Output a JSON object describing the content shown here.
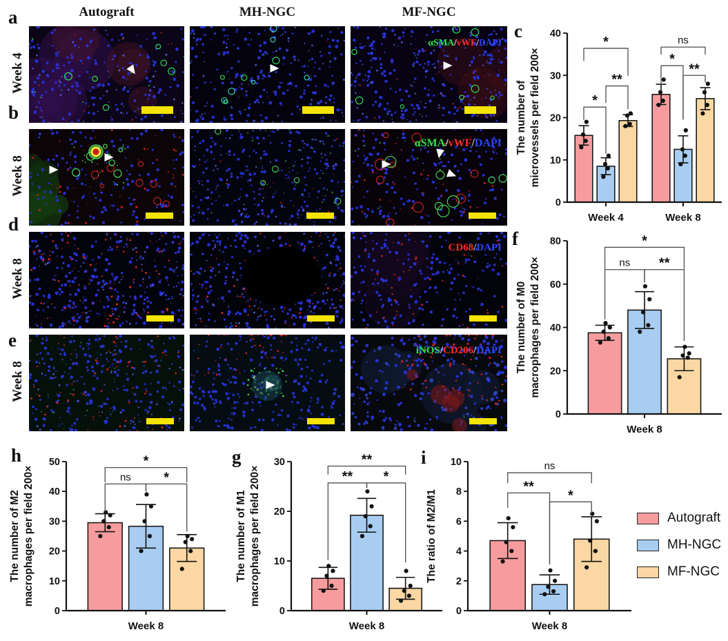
{
  "series": [
    {
      "label": "Autograft",
      "color": "#F79C9E"
    },
    {
      "label": "MH-NGC",
      "color": "#A8CDF1"
    },
    {
      "label": "MF-NGC",
      "color": "#FAD7A3"
    }
  ],
  "legend": {
    "items": [
      {
        "label": "Autograft",
        "color": "#F79C9E"
      },
      {
        "label": "MH-NGC",
        "color": "#A8CDF1"
      },
      {
        "label": "MF-NGC",
        "color": "#FAD7A3"
      }
    ]
  },
  "micro": {
    "col_headers": [
      "Autograft",
      "MH-NGC",
      "MF-NGC"
    ],
    "scale_bar_color": "#F5E400",
    "rows": [
      {
        "letter": "a",
        "side_label": "Week 4",
        "marker": [
          {
            "t": "αSMA",
            "c": "#2EE34A"
          },
          {
            "t": "/",
            "c": "#F0F0F0"
          },
          {
            "t": "vWF",
            "c": "#FF2A2A"
          },
          {
            "t": "/",
            "c": "#C8C8C8"
          },
          {
            "t": "DAPI",
            "c": "#2A46FF"
          }
        ]
      },
      {
        "letter": "b",
        "side_label": "Week 8",
        "marker": [
          {
            "t": "αSMA",
            "c": "#2EE34A"
          },
          {
            "t": "/",
            "c": "#F0F0F0"
          },
          {
            "t": "vWF",
            "c": "#FF2A2A"
          },
          {
            "t": "/",
            "c": "#C8C8C8"
          },
          {
            "t": "DAPI",
            "c": "#2A46FF"
          }
        ]
      },
      {
        "letter": "d",
        "side_label": "Week 8",
        "marker": [
          {
            "t": "CD68",
            "c": "#FF2A2A"
          },
          {
            "t": "/",
            "c": "#C8C8C8"
          },
          {
            "t": "DAPI",
            "c": "#2A46FF"
          }
        ]
      },
      {
        "letter": "e",
        "side_label": "Week 8",
        "marker": [
          {
            "t": "iNOS",
            "c": "#2EE34A"
          },
          {
            "t": "/",
            "c": "#F0F0F0"
          },
          {
            "t": "CD206",
            "c": "#FF2A2A"
          },
          {
            "t": "/",
            "c": "#C8C8C8"
          },
          {
            "t": "DAPI",
            "c": "#2A46FF"
          }
        ]
      }
    ]
  },
  "chart_data": [
    {
      "id": "c",
      "panel": "c",
      "type": "bar",
      "ylabel_lines": [
        "The number of",
        "microvessels per field 200×"
      ],
      "ylim": [
        0,
        40
      ],
      "yticks": [
        0,
        10,
        20,
        30,
        40
      ],
      "groups": [
        {
          "label": "Week 4",
          "bars": [
            {
              "series": "Autograft",
              "mean": 15.8,
              "sd": 2.3,
              "points": [
                13,
                14.5,
                16,
                19
              ]
            },
            {
              "series": "MH-NGC",
              "mean": 8.5,
              "sd": 2,
              "points": [
                6,
                8,
                9,
                11
              ]
            },
            {
              "series": "MF-NGC",
              "mean": 19.3,
              "sd": 1.4,
              "points": [
                18,
                18.5,
                20.5,
                21
              ]
            }
          ]
        },
        {
          "label": "Week 8",
          "bars": [
            {
              "series": "Autograft",
              "mean": 25.5,
              "sd": 2.4,
              "points": [
                23,
                24,
                26,
                29
              ]
            },
            {
              "series": "MH-NGC",
              "mean": 12.5,
              "sd": 3.2,
              "points": [
                9,
                11,
                12.5,
                17
              ]
            },
            {
              "series": "MF-NGC",
              "mean": 24.5,
              "sd": 2.6,
              "points": [
                21,
                23,
                26,
                28
              ]
            }
          ]
        }
      ],
      "brackets": [
        {
          "g": 0,
          "a": 0,
          "b": 1,
          "y": 22.5,
          "label": "*",
          "legs": [
            3,
            11
          ]
        },
        {
          "g": 0,
          "a": 1,
          "b": 2,
          "y": 27.5,
          "label": "**",
          "legs": [
            4,
            5.5
          ]
        },
        {
          "g": 0,
          "a": 0,
          "b": 2,
          "y": 36.4,
          "label": "*",
          "legs": [
            3,
            6.5
          ]
        },
        {
          "g": 1,
          "a": 0,
          "b": 1,
          "y": 32.3,
          "label": "*",
          "legs": [
            4.5,
            12.5
          ]
        },
        {
          "g": 1,
          "a": 1,
          "b": 2,
          "y": 30,
          "label": "**",
          "legs": [
            10.5,
            1.7
          ]
        },
        {
          "g": 1,
          "a": 0,
          "b": 2,
          "y": 36.7,
          "label": "ns",
          "legs": [
            1.8,
            1.8
          ]
        }
      ]
    },
    {
      "id": "f",
      "panel": "f",
      "type": "bar",
      "ylabel_lines": [
        "The number of M0",
        "macrophages per field 200×"
      ],
      "ylim": [
        0,
        80
      ],
      "yticks": [
        0,
        20,
        40,
        60,
        80
      ],
      "groups": [
        {
          "label": "Week 8",
          "bars": [
            {
              "series": "Autograft",
              "mean": 37.5,
              "sd": 3.5,
              "points": [
                33,
                35,
                38,
                40,
                42
              ]
            },
            {
              "series": "MH-NGC",
              "mean": 48,
              "sd": 8.5,
              "points": [
                38,
                41,
                47,
                53,
                59
              ]
            },
            {
              "series": "MF-NGC",
              "mean": 25.5,
              "sd": 5.5,
              "points": [
                17,
                26,
                27,
                28,
                31
              ]
            }
          ]
        }
      ],
      "brackets": [
        {
          "g": 0,
          "a": 0,
          "b": 1,
          "y": 66.7,
          "label": "ns",
          "legs": [
            23,
            6
          ]
        },
        {
          "g": 0,
          "a": 1,
          "b": 2,
          "y": 66.7,
          "label": "**",
          "legs": [
            6,
            33
          ]
        },
        {
          "g": 0,
          "a": 0,
          "b": 2,
          "y": 77,
          "label": "*",
          "legs": [
            10,
            10
          ]
        }
      ]
    },
    {
      "id": "h",
      "panel": "h",
      "type": "bar",
      "ylabel_lines": [
        "The number of M2",
        "macrophages per field 200×"
      ],
      "ylim": [
        0,
        50
      ],
      "yticks": [
        0,
        10,
        20,
        30,
        40,
        50
      ],
      "groups": [
        {
          "label": "Week 8",
          "bars": [
            {
              "series": "Autograft",
              "mean": 29.5,
              "sd": 3,
              "points": [
                25,
                28,
                30,
                32,
                33
              ]
            },
            {
              "series": "MH-NGC",
              "mean": 28.3,
              "sd": 7.3,
              "points": [
                20,
                25,
                30,
                35,
                39
              ]
            },
            {
              "series": "MF-NGC",
              "mean": 21,
              "sd": 4.5,
              "points": [
                14,
                20,
                23,
                24,
                25
              ]
            }
          ]
        }
      ],
      "brackets": [
        {
          "g": 0,
          "a": 0,
          "b": 1,
          "y": 42.5,
          "label": "ns",
          "legs": [
            9.5,
            2.5
          ]
        },
        {
          "g": 0,
          "a": 1,
          "b": 2,
          "y": 42.5,
          "label": "*",
          "legs": [
            2.5,
            16
          ]
        },
        {
          "g": 0,
          "a": 0,
          "b": 2,
          "y": 48,
          "label": "*",
          "legs": [
            5,
            5
          ]
        }
      ]
    },
    {
      "id": "g",
      "panel": "g",
      "type": "bar",
      "ylabel_lines": [
        "The number of M1",
        "macrophages per field 200×"
      ],
      "ylim": [
        0,
        30
      ],
      "yticks": [
        0,
        10,
        20,
        30
      ],
      "groups": [
        {
          "label": "Week 8",
          "bars": [
            {
              "series": "Autograft",
              "mean": 6.5,
              "sd": 2.2,
              "points": [
                4,
                5,
                7,
                8,
                9
              ]
            },
            {
              "series": "MH-NGC",
              "mean": 19.2,
              "sd": 3.4,
              "points": [
                15,
                17,
                19,
                21,
                24
              ]
            },
            {
              "series": "MF-NGC",
              "mean": 4.5,
              "sd": 2.2,
              "points": [
                2,
                3,
                4,
                5,
                8
              ]
            }
          ]
        }
      ],
      "brackets": [
        {
          "g": 0,
          "a": 0,
          "b": 1,
          "y": 25.7,
          "label": "**",
          "legs": [
            15.5,
            1
          ]
        },
        {
          "g": 0,
          "a": 1,
          "b": 2,
          "y": 25.7,
          "label": "*",
          "legs": [
            1,
            16
          ]
        },
        {
          "g": 0,
          "a": 0,
          "b": 2,
          "y": 29.1,
          "label": "**",
          "legs": [
            1.7,
            1.7
          ]
        }
      ]
    },
    {
      "id": "i",
      "panel": "i",
      "type": "bar",
      "ylabel_lines": [
        "The ratio of M2/M1"
      ],
      "ylim": [
        0,
        10
      ],
      "yticks": [
        0,
        2,
        4,
        6,
        8,
        10
      ],
      "groups": [
        {
          "label": "Week 8",
          "bars": [
            {
              "series": "Autograft",
              "mean": 4.7,
              "sd": 1.2,
              "points": [
                3.3,
                4,
                4.6,
                5.6,
                6.2
              ]
            },
            {
              "series": "MH-NGC",
              "mean": 1.75,
              "sd": 0.65,
              "points": [
                1.1,
                1.3,
                1.6,
                2,
                2.7
              ]
            },
            {
              "series": "MF-NGC",
              "mean": 4.8,
              "sd": 1.5,
              "points": [
                2.9,
                4,
                4.7,
                6,
                6.5
              ]
            }
          ]
        }
      ],
      "brackets": [
        {
          "g": 0,
          "a": 0,
          "b": 1,
          "y": 7.9,
          "label": "**",
          "legs": [
            1,
            4.8
          ]
        },
        {
          "g": 0,
          "a": 1,
          "b": 2,
          "y": 7.3,
          "label": "*",
          "legs": [
            4.2,
            0.8
          ]
        },
        {
          "g": 0,
          "a": 0,
          "b": 2,
          "y": 9.25,
          "label": "ns",
          "legs": [
            0.7,
            0.7
          ]
        }
      ]
    }
  ]
}
